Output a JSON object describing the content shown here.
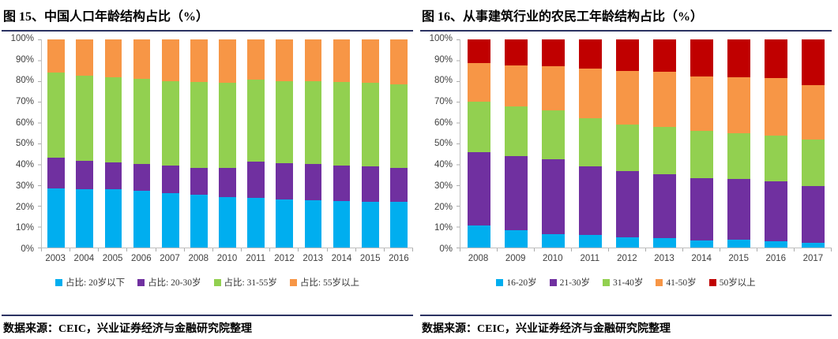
{
  "panels": [
    {
      "title": "图 15、中国人口年龄结构占比（%）",
      "source": "数据来源：CEIC，兴业证券经济与金融研究院整理"
    },
    {
      "title": "图 16、从事建筑行业的农民工年龄结构占比（%）",
      "source": "数据来源：CEIC，兴业证券经济与金融研究院整理"
    }
  ],
  "colors": {
    "rule_navy": "#2B3262",
    "axis_line": "#BFBFBF",
    "axis_text": "#404040",
    "blue": "#00AEEF",
    "purple": "#7030A0",
    "green": "#92D050",
    "orange": "#F79646",
    "dark_red": "#C00000"
  },
  "chart_data": [
    {
      "type": "bar",
      "stacked": true,
      "title": "图 15、中国人口年龄结构占比（%）",
      "categories": [
        "2003",
        "2004",
        "2005",
        "2006",
        "2007",
        "2008",
        "2010",
        "2011",
        "2012",
        "2013",
        "2014",
        "2015",
        "2016"
      ],
      "series": [
        {
          "name": "占比: 20岁以下",
          "color": "#00AEEF",
          "values": [
            28.6,
            28.1,
            28.0,
            27.2,
            26.2,
            25.2,
            24.1,
            23.7,
            23.2,
            22.9,
            22.5,
            22.0,
            21.8
          ]
        },
        {
          "name": "占比: 20-30岁",
          "color": "#7030A0",
          "values": [
            14.4,
            13.4,
            13.0,
            12.8,
            13.2,
            13.0,
            14.1,
            17.7,
            17.2,
            17.2,
            17.0,
            16.9,
            16.4
          ]
        },
        {
          "name": "占比: 31-55岁",
          "color": "#92D050",
          "values": [
            41.0,
            41.0,
            40.7,
            41.0,
            40.7,
            41.3,
            41.1,
            39.2,
            39.7,
            39.7,
            39.9,
            40.1,
            40.3
          ]
        },
        {
          "name": "占比: 55岁以上",
          "color": "#F79646",
          "values": [
            16.0,
            17.5,
            18.3,
            19.0,
            19.9,
            20.5,
            20.7,
            19.4,
            19.9,
            20.2,
            20.6,
            21.0,
            21.5
          ]
        }
      ],
      "ylabel": "",
      "xlabel": "",
      "ylim": [
        0,
        100
      ],
      "ytick_step": 10,
      "ytick_suffix": "%",
      "grid": false,
      "legend_position": "bottom"
    },
    {
      "type": "bar",
      "stacked": true,
      "title": "图 16、从事建筑行业的农民工年龄结构占比（%）",
      "categories": [
        "2008",
        "2009",
        "2010",
        "2011",
        "2012",
        "2013",
        "2014",
        "2015",
        "2016",
        "2017"
      ],
      "series": [
        {
          "name": "16-20岁",
          "color": "#00AEEF",
          "values": [
            10.8,
            8.4,
            6.6,
            6.1,
            4.9,
            4.5,
            3.5,
            3.8,
            3.2,
            2.2
          ]
        },
        {
          "name": "21-30岁",
          "color": "#7030A0",
          "values": [
            35.2,
            35.7,
            35.7,
            32.9,
            31.9,
            30.7,
            29.9,
            29.0,
            28.8,
            27.5
          ]
        },
        {
          "name": "31-40岁",
          "color": "#92D050",
          "values": [
            24.2,
            23.9,
            23.7,
            23.0,
            22.4,
            22.8,
            22.6,
            22.0,
            21.8,
            22.1
          ]
        },
        {
          "name": "41-50岁",
          "color": "#F79646",
          "values": [
            18.3,
            19.5,
            21.0,
            24.0,
            25.8,
            26.5,
            26.2,
            27.0,
            27.6,
            26.4
          ]
        },
        {
          "name": "50岁以上",
          "color": "#C00000",
          "values": [
            11.5,
            12.5,
            13.0,
            14.0,
            15.0,
            15.5,
            17.8,
            18.2,
            18.6,
            21.8
          ]
        }
      ],
      "ylabel": "",
      "xlabel": "",
      "ylim": [
        0,
        100
      ],
      "ytick_step": 10,
      "ytick_suffix": "%",
      "grid": false,
      "legend_position": "bottom"
    }
  ]
}
